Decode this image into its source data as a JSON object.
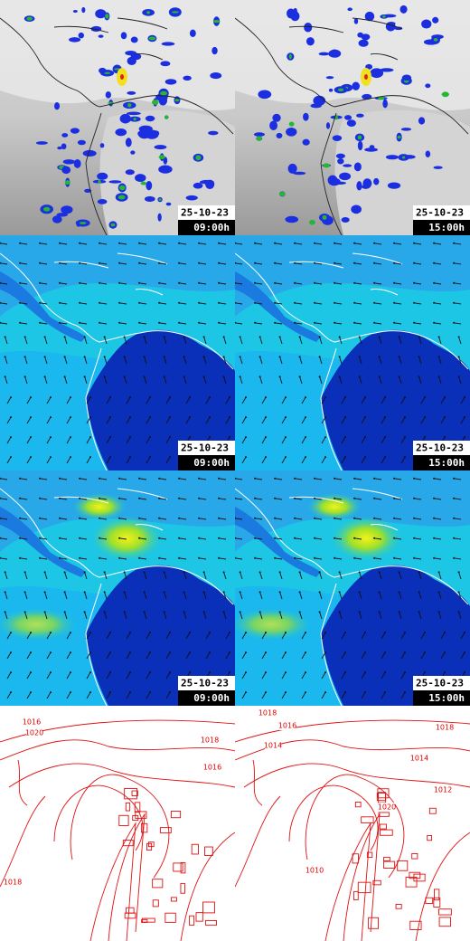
{
  "panels": [
    {
      "date": "25-10-23",
      "time": "09:00h"
    },
    {
      "date": "25-10-23",
      "time": "15:00h"
    },
    {
      "date": "25-10-23",
      "time": "09:00h"
    },
    {
      "date": "25-10-23",
      "time": "15:00h"
    },
    {
      "date": "25-10-23",
      "time": "09:00h"
    },
    {
      "date": "25-10-23",
      "time": "15:00h"
    }
  ],
  "pressure_maps": [
    {
      "isobar_labels": [
        "1020",
        "1016",
        "1018",
        "1016",
        "1018"
      ]
    },
    {
      "isobar_labels": [
        "1018",
        "1016",
        "1014",
        "1018",
        "1014",
        "1012",
        "1020",
        "1010"
      ]
    }
  ]
}
